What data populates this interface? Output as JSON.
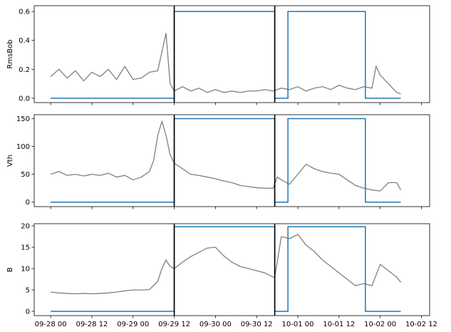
{
  "chart_data": {
    "type": "line",
    "shared_x": {
      "ticks": [
        "09-28 00",
        "09-28 12",
        "09-29 00",
        "09-29 12",
        "09-30 00",
        "09-30 12",
        "10-01 00",
        "10-01 12",
        "10-02 00",
        "10-02 12"
      ],
      "xlim": [
        -0.2,
        4.6
      ],
      "data_range": [
        0.0,
        4.25
      ]
    },
    "vertical_lines_x": [
      1.5,
      2.72
    ],
    "colors": {
      "noisy_series": "#808080",
      "step_series": "#1f77b4",
      "marker_lines": "#000000"
    },
    "panels": [
      {
        "ylabel": "RmsBob",
        "ylim": [
          -0.03,
          0.64
        ],
        "yticks": [
          "0.0",
          "0.2",
          "0.4",
          "0.6"
        ],
        "ytick_values": [
          0.0,
          0.2,
          0.4,
          0.6
        ],
        "step_low": 0.0,
        "step_high": 0.6,
        "noisy_series": {
          "x": [
            0.0,
            0.1,
            0.2,
            0.3,
            0.4,
            0.5,
            0.6,
            0.7,
            0.8,
            0.9,
            1.0,
            1.1,
            1.2,
            1.3,
            1.4,
            1.45,
            1.5,
            1.6,
            1.7,
            1.8,
            1.9,
            2.0,
            2.1,
            2.2,
            2.3,
            2.4,
            2.5,
            2.6,
            2.7,
            2.8,
            2.9,
            3.0,
            3.1,
            3.2,
            3.3,
            3.4,
            3.5,
            3.6,
            3.7,
            3.8,
            3.9,
            3.95,
            4.0,
            4.1,
            4.2,
            4.25
          ],
          "y": [
            0.15,
            0.2,
            0.14,
            0.19,
            0.12,
            0.18,
            0.15,
            0.2,
            0.13,
            0.22,
            0.13,
            0.14,
            0.18,
            0.19,
            0.45,
            0.1,
            0.05,
            0.08,
            0.05,
            0.07,
            0.04,
            0.06,
            0.04,
            0.05,
            0.04,
            0.05,
            0.05,
            0.06,
            0.05,
            0.07,
            0.06,
            0.08,
            0.05,
            0.07,
            0.08,
            0.06,
            0.09,
            0.07,
            0.06,
            0.08,
            0.07,
            0.22,
            0.16,
            0.1,
            0.04,
            0.03
          ]
        }
      },
      {
        "ylabel": "Vth",
        "ylim": [
          -8,
          157
        ],
        "yticks": [
          "0",
          "50",
          "100",
          "150"
        ],
        "ytick_values": [
          0,
          50,
          100,
          150
        ],
        "step_low": 0,
        "step_high": 150,
        "noisy_series": {
          "x": [
            0.0,
            0.1,
            0.2,
            0.3,
            0.4,
            0.5,
            0.6,
            0.7,
            0.8,
            0.9,
            1.0,
            1.1,
            1.2,
            1.25,
            1.3,
            1.35,
            1.4,
            1.45,
            1.5,
            1.6,
            1.7,
            1.8,
            1.9,
            2.0,
            2.1,
            2.2,
            2.3,
            2.4,
            2.5,
            2.6,
            2.7,
            2.75,
            2.8,
            2.9,
            3.0,
            3.1,
            3.2,
            3.3,
            3.4,
            3.5,
            3.6,
            3.7,
            3.8,
            3.9,
            4.0,
            4.1,
            4.2,
            4.25
          ],
          "y": [
            50,
            55,
            48,
            50,
            47,
            50,
            48,
            52,
            45,
            48,
            40,
            45,
            55,
            75,
            120,
            145,
            120,
            85,
            70,
            60,
            50,
            48,
            45,
            42,
            38,
            35,
            30,
            28,
            26,
            25,
            25,
            45,
            40,
            32,
            50,
            68,
            60,
            55,
            52,
            50,
            40,
            30,
            25,
            22,
            20,
            35,
            35,
            22
          ]
        }
      },
      {
        "ylabel": "B",
        "ylim": [
          -1,
          20.5
        ],
        "yticks": [
          "0",
          "5",
          "10",
          "15",
          "20"
        ],
        "ytick_values": [
          0,
          5,
          10,
          15,
          20
        ],
        "step_low": 0,
        "step_high": 19.8,
        "noisy_series": {
          "x": [
            0.0,
            0.1,
            0.2,
            0.3,
            0.4,
            0.5,
            0.6,
            0.7,
            0.8,
            0.9,
            1.0,
            1.1,
            1.2,
            1.3,
            1.35,
            1.4,
            1.45,
            1.5,
            1.6,
            1.7,
            1.8,
            1.9,
            2.0,
            2.1,
            2.2,
            2.3,
            2.4,
            2.5,
            2.6,
            2.7,
            2.72,
            2.8,
            2.9,
            3.0,
            3.1,
            3.2,
            3.3,
            3.4,
            3.5,
            3.6,
            3.7,
            3.8,
            3.9,
            4.0,
            4.1,
            4.2,
            4.25
          ],
          "y": [
            4.5,
            4.3,
            4.2,
            4.1,
            4.2,
            4.1,
            4.2,
            4.3,
            4.5,
            4.8,
            5.0,
            5.0,
            5.1,
            7.0,
            10.0,
            12.0,
            10.5,
            10.0,
            11.5,
            12.8,
            13.8,
            14.8,
            15.0,
            13.0,
            11.5,
            10.5,
            10.0,
            9.5,
            9.0,
            8.0,
            8.0,
            17.5,
            17.0,
            18.0,
            15.5,
            14.0,
            12.0,
            10.5,
            9.0,
            7.5,
            6.0,
            6.5,
            6.0,
            11.0,
            9.5,
            8.0,
            6.8
          ]
        }
      }
    ],
    "step_series_x": [
      0.0,
      1.5,
      1.5,
      2.72,
      2.72,
      2.88,
      2.88,
      3.82,
      3.82,
      4.25
    ],
    "step_series_pattern": [
      "low",
      "low",
      "high",
      "high",
      "low",
      "low",
      "high",
      "high",
      "low",
      "low"
    ]
  }
}
